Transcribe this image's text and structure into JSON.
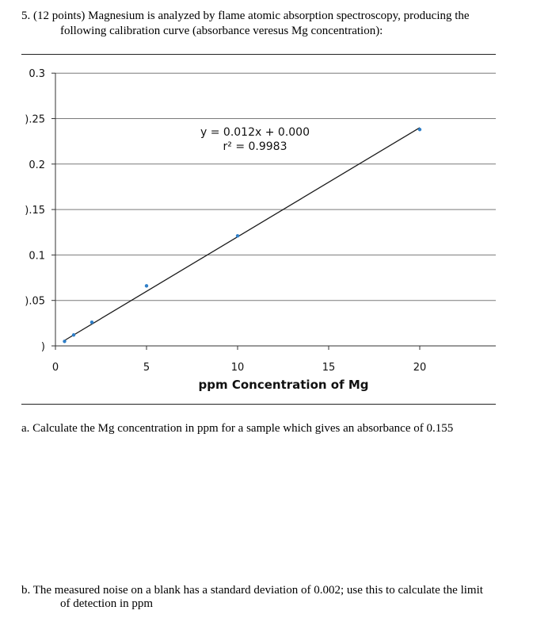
{
  "question": {
    "header_line1": "5. (12 points)  Magnesium is analyzed by flame atomic absorption spectroscopy, producing the",
    "header_line2": "following calibration curve (absorbance veresus Mg concentration):",
    "part_a": "a.  Calculate the Mg concentration in ppm for a sample which gives an absorbance of 0.155",
    "part_b_line1": "b. The measured noise on a blank has a standard deviation of 0.002; use this to calculate the limit",
    "part_b_line2": "of detection in ppm"
  },
  "chart_data": {
    "type": "scatter",
    "title": "",
    "xlabel": "ppm Concentration of Mg",
    "ylabel": "",
    "xlim": [
      0,
      24
    ],
    "ylim": [
      0,
      0.3
    ],
    "x_ticks": [
      "0",
      "5",
      "10",
      "15",
      "20"
    ],
    "y_ticks": [
      ")",
      ").05",
      "0.1",
      ").15",
      "0.2",
      ").25",
      "0.3"
    ],
    "grid": "horizontal",
    "legend": "none",
    "series": [
      {
        "x": [
          0.5,
          1,
          2,
          5,
          10,
          20
        ],
        "y": [
          0.005,
          0.012,
          0.026,
          0.066,
          0.121,
          0.238
        ]
      }
    ],
    "trendline": {
      "slope": 0.012,
      "intercept": 0.0,
      "x_range": [
        0.5,
        20
      ],
      "equation": "y = 0.012x + 0.000",
      "r_squared": "r² = 0.9983"
    },
    "colors": {
      "points": "#2f7fc8",
      "trendline": "#1a1a1a",
      "grid": "#7a7a7a"
    }
  }
}
